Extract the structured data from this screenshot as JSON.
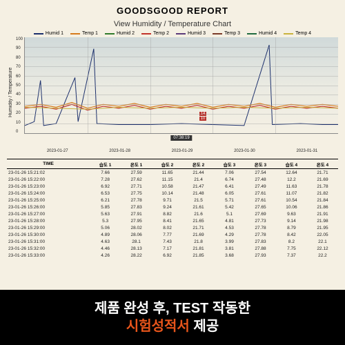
{
  "report": {
    "title": "GOODSGOOD REPORT",
    "subtitle": "View Humidity / Temperature Chart",
    "ylabel": "Humidity / Temperature",
    "timestamp_overlay": "07:38:19",
    "marker_values": [
      "14",
      "10"
    ],
    "yticks": [
      "100",
      "90",
      "80",
      "70",
      "60",
      "50",
      "40",
      "30",
      "20",
      "10",
      "0"
    ],
    "xticks": [
      "2023-01-27",
      "2023-01-28",
      "2023-01-29",
      "2023-01-30",
      "2023-01-31"
    ],
    "legend": [
      {
        "label": "Humid 1",
        "color": "#1a2e6b"
      },
      {
        "label": "Temp 1",
        "color": "#d67a1c"
      },
      {
        "label": "Humid 2",
        "color": "#2f7a2a"
      },
      {
        "label": "Temp 2",
        "color": "#c1322a"
      },
      {
        "label": "Humid 3",
        "color": "#5b3a7a"
      },
      {
        "label": "Temp 3",
        "color": "#7a3a28"
      },
      {
        "label": "Humid 4",
        "color": "#1f6b3f"
      },
      {
        "label": "Temp 4",
        "color": "#c9b23c"
      }
    ],
    "chart": {
      "type": "line",
      "xlim": [
        0,
        100
      ],
      "ylim": [
        0,
        100
      ],
      "grid_color": "rgba(160,160,160,0.4)",
      "series": [
        {
          "name": "humid1",
          "color": "#1a2e6b",
          "width": 1,
          "points": [
            [
              0,
              8
            ],
            [
              3,
              12
            ],
            [
              5,
              55
            ],
            [
              6,
              8
            ],
            [
              10,
              10
            ],
            [
              16,
              58
            ],
            [
              17,
              12
            ],
            [
              22,
              88
            ],
            [
              23,
              10
            ],
            [
              30,
              9
            ],
            [
              40,
              9
            ],
            [
              50,
              10
            ],
            [
              60,
              9
            ],
            [
              70,
              8
            ],
            [
              78,
              92
            ],
            [
              79,
              9
            ],
            [
              88,
              10
            ],
            [
              95,
              9
            ],
            [
              100,
              9
            ]
          ]
        },
        {
          "name": "temp_band",
          "color": "#d67a1c",
          "width": 1.2,
          "points": [
            [
              0,
              28
            ],
            [
              5,
              30
            ],
            [
              10,
              27
            ],
            [
              15,
              32
            ],
            [
              20,
              26
            ],
            [
              25,
              30
            ],
            [
              30,
              28
            ],
            [
              35,
              31
            ],
            [
              40,
              27
            ],
            [
              45,
              30
            ],
            [
              50,
              28
            ],
            [
              55,
              31
            ],
            [
              60,
              27
            ],
            [
              65,
              30
            ],
            [
              70,
              28
            ],
            [
              75,
              31
            ],
            [
              80,
              27
            ],
            [
              85,
              30
            ],
            [
              90,
              28
            ],
            [
              95,
              30
            ],
            [
              100,
              28
            ]
          ]
        },
        {
          "name": "temp_band2",
          "color": "#c1322a",
          "width": 1.2,
          "points": [
            [
              0,
              26
            ],
            [
              5,
              28
            ],
            [
              10,
              25
            ],
            [
              15,
              30
            ],
            [
              20,
              24
            ],
            [
              25,
              28
            ],
            [
              30,
              26
            ],
            [
              35,
              29
            ],
            [
              40,
              25
            ],
            [
              45,
              28
            ],
            [
              50,
              26
            ],
            [
              55,
              29
            ],
            [
              60,
              25
            ],
            [
              65,
              28
            ],
            [
              70,
              26
            ],
            [
              75,
              29
            ],
            [
              80,
              25
            ],
            [
              85,
              28
            ],
            [
              90,
              26
            ],
            [
              95,
              28
            ],
            [
              100,
              26
            ]
          ]
        },
        {
          "name": "temp_band3",
          "color": "#c9b23c",
          "width": 1,
          "points": [
            [
              0,
              27
            ],
            [
              10,
              26
            ],
            [
              20,
              25
            ],
            [
              30,
              27
            ],
            [
              40,
              26
            ],
            [
              50,
              27
            ],
            [
              60,
              26
            ],
            [
              70,
              27
            ],
            [
              80,
              26
            ],
            [
              90,
              27
            ],
            [
              100,
              26
            ]
          ]
        }
      ]
    }
  },
  "table": {
    "columns": [
      "TIME",
      "습도 1",
      "온도 1",
      "습도 2",
      "온도 2",
      "습도 3",
      "온도 3",
      "습도 4",
      "온도 4"
    ],
    "rows": [
      [
        "23-01-26 15:21:02",
        "7.66",
        "27.59",
        "11.65",
        "21.44",
        "7.06",
        "27.54",
        "12.64",
        "21.71"
      ],
      [
        "23-01-26 15:22:00",
        "7.28",
        "27.62",
        "11.15",
        "21.4",
        "6.74",
        "27.48",
        "12.2",
        "21.69"
      ],
      [
        "23-01-26 15:23:00",
        "6.92",
        "27.71",
        "10.58",
        "21.47",
        "6.41",
        "27.49",
        "11.63",
        "21.78"
      ],
      [
        "23-01-26 15:24:00",
        "6.53",
        "27.75",
        "10.14",
        "21.48",
        "6.05",
        "27.61",
        "11.07",
        "21.82"
      ],
      [
        "23-01-26 15:25:00",
        "6.21",
        "27.78",
        "9.71",
        "21.5",
        "5.71",
        "27.61",
        "10.54",
        "21.84"
      ],
      [
        "23-01-26 15:26:00",
        "5.85",
        "27.83",
        "9.24",
        "21.61",
        "5.42",
        "27.65",
        "10.06",
        "21.86"
      ],
      [
        "23-01-26 15:27:00",
        "5.63",
        "27.91",
        "8.82",
        "21.6",
        "5.1",
        "27.69",
        "9.63",
        "21.91"
      ],
      [
        "23-01-26 15:28:00",
        "5.3",
        "27.95",
        "8.41",
        "21.65",
        "4.81",
        "27.73",
        "9.14",
        "21.98"
      ],
      [
        "23-01-26 15:29:00",
        "5.06",
        "28.02",
        "8.02",
        "21.71",
        "4.53",
        "27.78",
        "8.79",
        "21.95"
      ],
      [
        "23-01-26 15:30:00",
        "4.89",
        "28.06",
        "7.77",
        "21.69",
        "4.29",
        "27.78",
        "8.42",
        "22.05"
      ],
      [
        "23-01-26 15:31:00",
        "4.63",
        "28.1",
        "7.43",
        "21.8",
        "3.99",
        "27.83",
        "8.2",
        "22.1"
      ],
      [
        "23-01-26 15:32:00",
        "4.46",
        "28.13",
        "7.17",
        "21.81",
        "3.81",
        "27.88",
        "7.75",
        "22.12"
      ],
      [
        "23-01-26 15:33:00",
        "4.26",
        "28.22",
        "6.92",
        "21.85",
        "3.68",
        "27.93",
        "7.37",
        "22.2"
      ]
    ]
  },
  "banner": {
    "line1_pre": "제품 완성 후, TEST 작동한",
    "line2_highlight": "시험성적서",
    "line2_post": " 제공",
    "highlight_color": "#e8551b",
    "bg": "#000000",
    "fg": "#ffffff"
  }
}
